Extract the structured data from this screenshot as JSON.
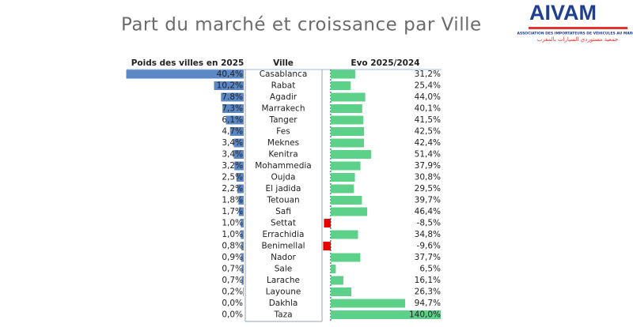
{
  "logo": {
    "name": "AIVAM",
    "subtitle": "ASSOCIATION DES IMPORTATEURS DE VÉHICULES AU MAROC",
    "arabic": "جمعية مستوردي السيارات بالمغرب"
  },
  "chart_data": {
    "type": "bar",
    "orientation": "horizontal",
    "title": "Part du marché et croissance par Ville",
    "category_header": "Ville",
    "categories": [
      "Casablanca",
      "Rabat",
      "Agadir",
      "Marrakech",
      "Tanger",
      "Fes",
      "Meknes",
      "Kenitra",
      "Mohammedia",
      "Oujda",
      "El jadida",
      "Tetouan",
      "Safi",
      "Settat",
      "Errachidia",
      "Benimellal",
      "Nador",
      "Sale",
      "Larache",
      "Layoune",
      "Dakhla",
      "Taza"
    ],
    "series": [
      {
        "name": "Poids des villes en 2025",
        "color": "#5b87c5",
        "xlim": [
          0,
          40
        ],
        "values": [
          40.4,
          10.2,
          7.8,
          7.3,
          6.1,
          4.7,
          3.4,
          3.4,
          3.2,
          2.5,
          2.2,
          1.8,
          1.7,
          1.0,
          1.0,
          0.8,
          0.9,
          0.7,
          0.7,
          0.2,
          0.0,
          0.0
        ],
        "value_labels": [
          "40,4%",
          "10,2%",
          "7.8%",
          "7,3%",
          "6,1%",
          "4,7%",
          "3,4%",
          "3,4%",
          "3,2%",
          "2,5%",
          "2,2%",
          "1,8%",
          "1,7%",
          "1,0%",
          "1,0%",
          "0,8%",
          "0,9%",
          "0,7%",
          "0,7%",
          "0,2%",
          "0,0%",
          "0,0%"
        ]
      },
      {
        "name": "Evo 2025/2024",
        "color": "#5dd08a",
        "negative_color": "#e60000",
        "xlim": [
          -10,
          140
        ],
        "values": [
          31.2,
          25.4,
          44.0,
          40.1,
          41.5,
          42.5,
          42.4,
          51.4,
          37.9,
          30.8,
          29.5,
          39.7,
          46.4,
          -8.5,
          34.8,
          -9.6,
          37.7,
          6.5,
          16.1,
          26.3,
          94.7,
          140.0
        ],
        "value_labels": [
          "31,2%",
          "25,4%",
          "44,0%",
          "40,1%",
          "41,5%",
          "42,5%",
          "42,4%",
          "51,4%",
          "37,9%",
          "30,8%",
          "29,5%",
          "39,7%",
          "46,4%",
          "-8,5%",
          "34,8%",
          "-9,6%",
          "37,7%",
          "6,5%",
          "16,1%",
          "26,3%",
          "94,7%",
          "140,0%"
        ]
      }
    ]
  }
}
